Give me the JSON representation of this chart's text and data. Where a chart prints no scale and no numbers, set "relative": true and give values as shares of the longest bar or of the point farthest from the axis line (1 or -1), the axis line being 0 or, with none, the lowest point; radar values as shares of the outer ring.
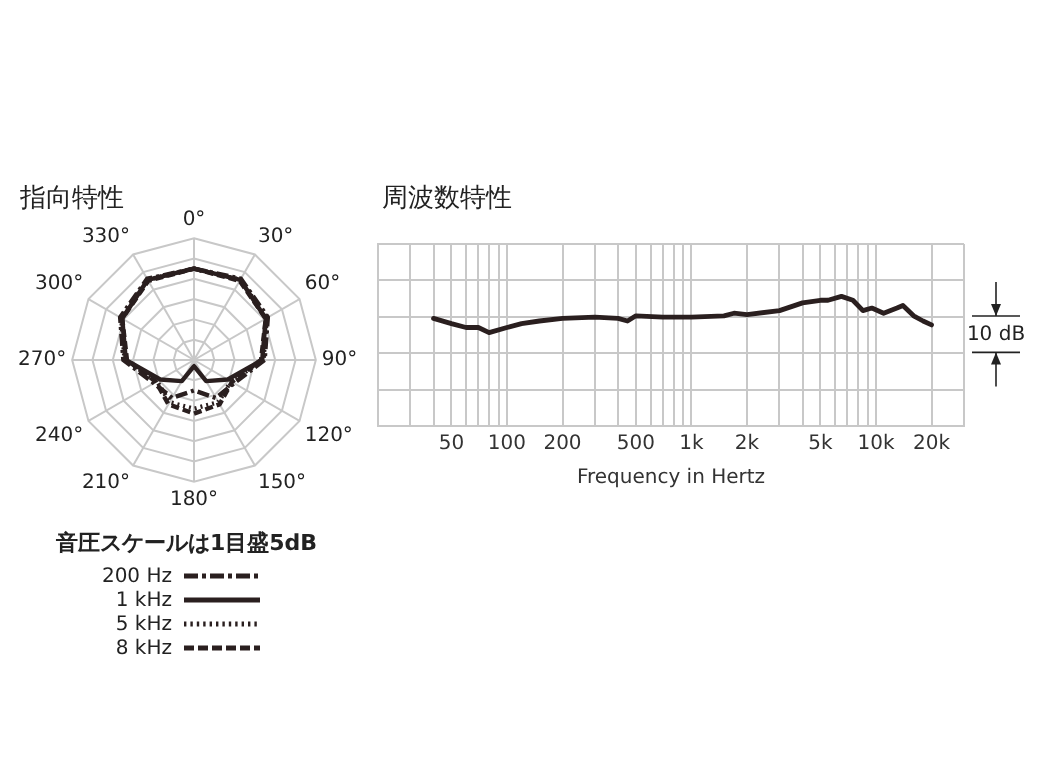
{
  "chart_data": [
    {
      "type": "radar",
      "title": "指向特性",
      "legend_title": "音圧スケールは1目盛5dB",
      "relative": true,
      "grid": true,
      "legend": "bottom",
      "marker": "none",
      "categories": [
        "0°",
        "30°",
        "60°",
        "90°",
        "120°",
        "150°",
        "180°",
        "210°",
        "240°",
        "270°",
        "300°",
        "330°"
      ],
      "series": [
        {
          "name": "200 Hz",
          "color": "#2a1f1f",
          "line_style": "dashdot",
          "values": [
            0.75,
            0.77,
            0.7,
            0.58,
            0.38,
            0.36,
            0.25,
            0.36,
            0.38,
            0.58,
            0.7,
            0.77
          ]
        },
        {
          "name": "1 kHz",
          "color": "#2a1f1f",
          "line_style": "solid",
          "values": [
            0.75,
            0.76,
            0.68,
            0.56,
            0.32,
            0.2,
            0.05,
            0.2,
            0.32,
            0.56,
            0.68,
            0.76
          ]
        },
        {
          "name": "5 kHz",
          "color": "#2a1f1f",
          "line_style": "dotted",
          "values": [
            0.75,
            0.76,
            0.69,
            0.57,
            0.35,
            0.4,
            0.4,
            0.4,
            0.35,
            0.57,
            0.69,
            0.76
          ]
        },
        {
          "name": "8 kHz",
          "color": "#2a1f1f",
          "line_style": "dashed",
          "values": [
            0.75,
            0.75,
            0.68,
            0.55,
            0.36,
            0.42,
            0.44,
            0.42,
            0.36,
            0.55,
            0.68,
            0.75
          ]
        }
      ]
    },
    {
      "type": "line",
      "title": "周波数特性",
      "xlabel": "Frequency in Hertz",
      "relative": true,
      "log": "x",
      "grid": true,
      "marker": "none",
      "annotations": [
        "10 dB"
      ],
      "xlim": [
        20,
        30000
      ],
      "xticks": [
        {
          "value": 20,
          "label": null
        },
        {
          "value": 30,
          "label": null
        },
        {
          "value": 40,
          "label": null
        },
        50,
        {
          "value": 60,
          "label": null
        },
        {
          "value": 70,
          "label": null
        },
        {
          "value": 80,
          "label": null
        },
        {
          "value": 90,
          "label": null
        },
        100,
        200,
        {
          "value": 300,
          "label": null
        },
        {
          "value": 400,
          "label": null
        },
        500,
        {
          "value": 600,
          "label": null
        },
        {
          "value": 700,
          "label": null
        },
        {
          "value": 800,
          "label": null
        },
        {
          "value": 900,
          "label": null
        },
        {
          "value": 1000,
          "label": "1k"
        },
        {
          "value": 2000,
          "label": "2k"
        },
        {
          "value": 3000,
          "label": null
        },
        {
          "value": 4000,
          "label": null
        },
        {
          "value": 5000,
          "label": "5k"
        },
        {
          "value": 6000,
          "label": null
        },
        {
          "value": 7000,
          "label": null
        },
        {
          "value": 8000,
          "label": null
        },
        {
          "value": 9000,
          "label": null
        },
        {
          "value": 10000,
          "label": "10k"
        },
        {
          "value": 20000,
          "label": "20k"
        },
        {
          "value": 30000,
          "label": null
        }
      ],
      "x": [
        40,
        50,
        60,
        70,
        80,
        100,
        120,
        150,
        200,
        300,
        400,
        450,
        500,
        700,
        1000,
        1500,
        1700,
        2000,
        3000,
        4000,
        5000,
        5500,
        6500,
        7500,
        8500,
        9500,
        11000,
        13000,
        14000,
        16000,
        18000,
        20000
      ],
      "series": [
        {
          "color": "#2a1f1f",
          "values": [
            0.83,
            0.79,
            0.76,
            0.76,
            0.72,
            0.76,
            0.79,
            0.81,
            0.83,
            0.84,
            0.83,
            0.81,
            0.85,
            0.84,
            0.84,
            0.85,
            0.87,
            0.86,
            0.89,
            0.95,
            0.97,
            0.97,
            1,
            0.97,
            0.89,
            0.91,
            0.87,
            0.91,
            0.93,
            0.85,
            0.81,
            0.78
          ]
        }
      ]
    }
  ]
}
